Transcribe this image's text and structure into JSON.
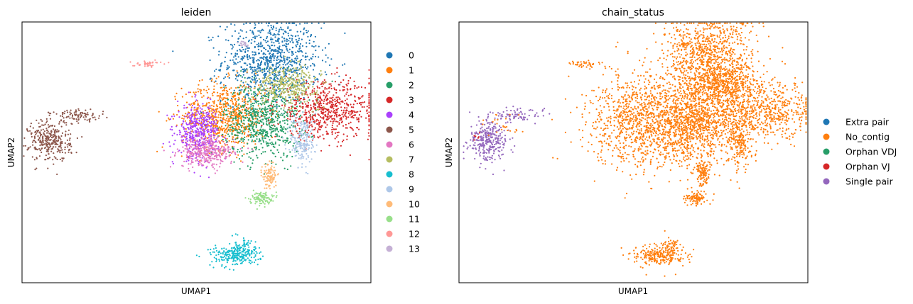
{
  "chart_data": [
    {
      "type": "scatter",
      "title": "leiden",
      "xlabel": "UMAP1",
      "ylabel": "UMAP2",
      "xlim": [
        0,
        1
      ],
      "ylim": [
        0,
        1
      ],
      "grid": false,
      "legend_placement": "right",
      "legend": [
        {
          "label": "0",
          "color": "#1f77b4"
        },
        {
          "label": "1",
          "color": "#ff7f0e"
        },
        {
          "label": "2",
          "color": "#279e68"
        },
        {
          "label": "3",
          "color": "#d62728"
        },
        {
          "label": "4",
          "color": "#aa40fc"
        },
        {
          "label": "5",
          "color": "#8c564b"
        },
        {
          "label": "6",
          "color": "#e377c2"
        },
        {
          "label": "7",
          "color": "#b5bd61"
        },
        {
          "label": "8",
          "color": "#17becf"
        },
        {
          "label": "9",
          "color": "#aec7e8"
        },
        {
          "label": "10",
          "color": "#ffbb78"
        },
        {
          "label": "11",
          "color": "#98df8a"
        },
        {
          "label": "12",
          "color": "#ff9896"
        },
        {
          "label": "13",
          "color": "#c5b0d5"
        }
      ],
      "clusters": [
        {
          "label": "0",
          "cx": 0.715,
          "cy": 0.85,
          "sx": 0.07,
          "sy": 0.08,
          "n": 900,
          "color": "#1f77b4"
        },
        {
          "label": "1",
          "cx": 0.58,
          "cy": 0.64,
          "sx": 0.06,
          "sy": 0.065,
          "n": 750,
          "color": "#ff7f0e"
        },
        {
          "label": "2",
          "cx": 0.69,
          "cy": 0.62,
          "sx": 0.055,
          "sy": 0.07,
          "n": 700,
          "color": "#279e68"
        },
        {
          "label": "3",
          "cx": 0.875,
          "cy": 0.66,
          "sx": 0.075,
          "sy": 0.055,
          "n": 650,
          "color": "#d62728"
        },
        {
          "label": "4",
          "cx": 0.505,
          "cy": 0.58,
          "sx": 0.03,
          "sy": 0.05,
          "n": 420,
          "color": "#aa40fc"
        },
        {
          "label": "5",
          "cx": 0.08,
          "cy": 0.545,
          "sx": 0.03,
          "sy": 0.04,
          "n": 320,
          "color": "#8c564b"
        },
        {
          "label": "5",
          "cx": 0.16,
          "cy": 0.64,
          "sx": 0.04,
          "sy": 0.012,
          "n": 90,
          "color": "#8c564b"
        },
        {
          "label": "6",
          "cx": 0.53,
          "cy": 0.5,
          "sx": 0.04,
          "sy": 0.028,
          "n": 350,
          "color": "#e377c2"
        },
        {
          "label": "7",
          "cx": 0.76,
          "cy": 0.76,
          "sx": 0.045,
          "sy": 0.035,
          "n": 360,
          "color": "#b5bd61"
        },
        {
          "label": "8",
          "cx": 0.61,
          "cy": 0.105,
          "sx": 0.035,
          "sy": 0.02,
          "n": 240,
          "color": "#17becf"
        },
        {
          "label": "8",
          "cx": 0.64,
          "cy": 0.14,
          "sx": 0.015,
          "sy": 0.02,
          "n": 50,
          "color": "#17becf"
        },
        {
          "label": "9",
          "cx": 0.805,
          "cy": 0.54,
          "sx": 0.018,
          "sy": 0.05,
          "n": 190,
          "color": "#aec7e8"
        },
        {
          "label": "10",
          "cx": 0.71,
          "cy": 0.41,
          "sx": 0.01,
          "sy": 0.025,
          "n": 110,
          "color": "#ffbb78"
        },
        {
          "label": "11",
          "cx": 0.685,
          "cy": 0.325,
          "sx": 0.016,
          "sy": 0.012,
          "n": 100,
          "color": "#98df8a"
        },
        {
          "label": "12",
          "cx": 0.355,
          "cy": 0.84,
          "sx": 0.022,
          "sy": 0.006,
          "n": 40,
          "color": "#ff9896"
        },
        {
          "label": "13",
          "cx": 0.635,
          "cy": 0.915,
          "sx": 0.008,
          "sy": 0.005,
          "n": 20,
          "color": "#c5b0d5"
        }
      ]
    },
    {
      "type": "scatter",
      "title": "chain_status",
      "xlabel": "UMAP1",
      "ylabel": "UMAP2",
      "xlim": [
        0,
        1
      ],
      "ylim": [
        0,
        1
      ],
      "grid": false,
      "legend_placement": "right",
      "legend": [
        {
          "label": "Extra pair",
          "color": "#1f77b4"
        },
        {
          "label": "No_contig",
          "color": "#ff7f0e"
        },
        {
          "label": "Orphan VDJ",
          "color": "#279e68"
        },
        {
          "label": "Orphan VJ",
          "color": "#d62728"
        },
        {
          "label": "Single pair",
          "color": "#9467bd"
        }
      ],
      "clusters": [
        {
          "label": "No_contig",
          "cx": 0.72,
          "cy": 0.86,
          "sx": 0.065,
          "sy": 0.08,
          "n": 950,
          "color": "#ff7f0e"
        },
        {
          "label": "No_contig",
          "cx": 0.56,
          "cy": 0.62,
          "sx": 0.09,
          "sy": 0.09,
          "n": 1400,
          "color": "#ff7f0e"
        },
        {
          "label": "No_contig",
          "cx": 0.69,
          "cy": 0.62,
          "sx": 0.055,
          "sy": 0.07,
          "n": 700,
          "color": "#ff7f0e"
        },
        {
          "label": "No_contig",
          "cx": 0.875,
          "cy": 0.66,
          "sx": 0.075,
          "sy": 0.055,
          "n": 650,
          "color": "#ff7f0e"
        },
        {
          "label": "No_contig",
          "cx": 0.76,
          "cy": 0.76,
          "sx": 0.045,
          "sy": 0.035,
          "n": 360,
          "color": "#ff7f0e"
        },
        {
          "label": "No_contig",
          "cx": 0.805,
          "cy": 0.54,
          "sx": 0.018,
          "sy": 0.05,
          "n": 190,
          "color": "#ff7f0e"
        },
        {
          "label": "No_contig",
          "cx": 0.7,
          "cy": 0.42,
          "sx": 0.01,
          "sy": 0.025,
          "n": 110,
          "color": "#ff7f0e"
        },
        {
          "label": "No_contig",
          "cx": 0.68,
          "cy": 0.325,
          "sx": 0.016,
          "sy": 0.012,
          "n": 100,
          "color": "#ff7f0e"
        },
        {
          "label": "No_contig",
          "cx": 0.575,
          "cy": 0.105,
          "sx": 0.035,
          "sy": 0.02,
          "n": 240,
          "color": "#ff7f0e"
        },
        {
          "label": "No_contig",
          "cx": 0.61,
          "cy": 0.14,
          "sx": 0.015,
          "sy": 0.02,
          "n": 50,
          "color": "#ff7f0e"
        },
        {
          "label": "No_contig",
          "cx": 0.36,
          "cy": 0.84,
          "sx": 0.02,
          "sy": 0.006,
          "n": 40,
          "color": "#ff7f0e"
        },
        {
          "label": "No_contig",
          "cx": 0.64,
          "cy": 0.915,
          "sx": 0.008,
          "sy": 0.005,
          "n": 20,
          "color": "#ff7f0e"
        },
        {
          "label": "Single pair",
          "cx": 0.085,
          "cy": 0.545,
          "sx": 0.028,
          "sy": 0.038,
          "n": 300,
          "color": "#9467bd"
        },
        {
          "label": "Single pair",
          "cx": 0.16,
          "cy": 0.64,
          "sx": 0.035,
          "sy": 0.012,
          "n": 80,
          "color": "#9467bd"
        },
        {
          "label": "Orphan VJ",
          "cx": 0.05,
          "cy": 0.56,
          "sx": 0.006,
          "sy": 0.01,
          "n": 6,
          "color": "#d62728"
        },
        {
          "label": "No_contig",
          "cx": 0.13,
          "cy": 0.6,
          "sx": 0.03,
          "sy": 0.03,
          "n": 25,
          "color": "#ff7f0e"
        }
      ]
    }
  ]
}
